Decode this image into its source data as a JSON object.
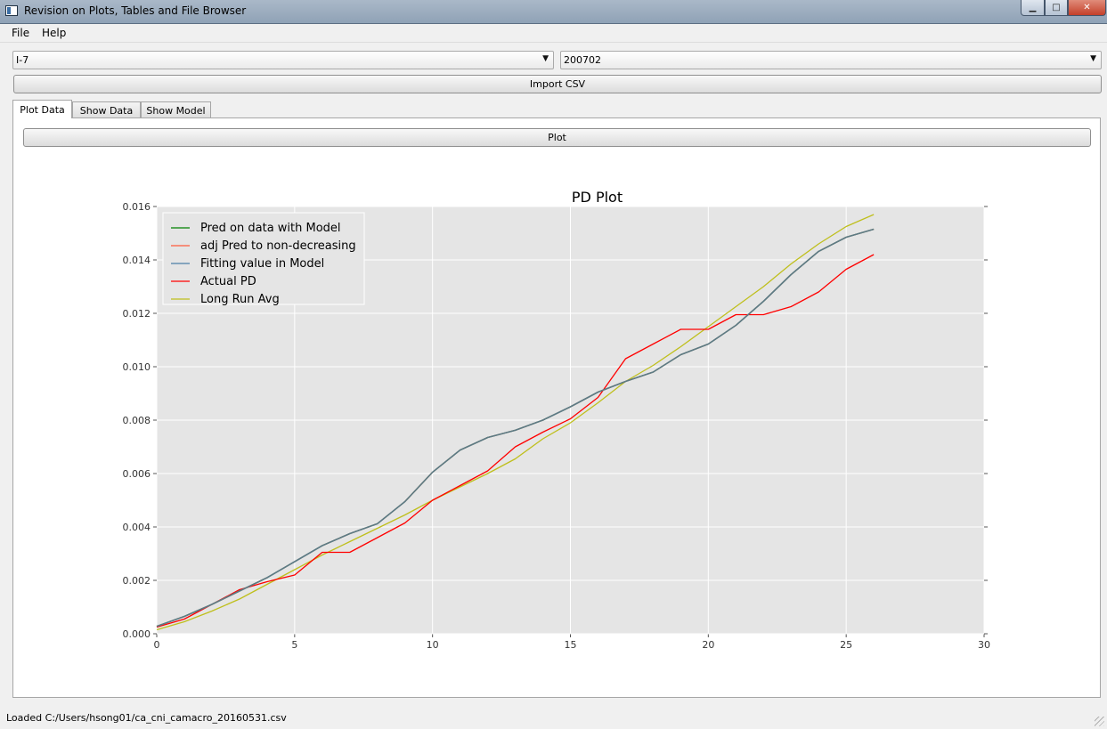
{
  "window": {
    "title": "Revision on Plots, Tables and File Browser",
    "min_glyph": "▁",
    "max_glyph": "□",
    "close_glyph": "✕",
    "icon": "app-window-icon"
  },
  "menu": {
    "file": "File",
    "help": "Help"
  },
  "selectors": {
    "group": {
      "value": "I-7",
      "arrow": "▼"
    },
    "period": {
      "value": "200702",
      "arrow": "▼"
    }
  },
  "import_button": "Import CSV",
  "tabs": [
    {
      "label": "Plot Data",
      "active": true
    },
    {
      "label": "Show Data",
      "active": false
    },
    {
      "label": "Show Model",
      "active": false
    }
  ],
  "plot_button": "Plot",
  "status": "Loaded C:/Users/hsong01/ca_cni_camacro_20160531.csv",
  "colors": {
    "plot_bg": "#e5e5e5",
    "grid": "#ffffff",
    "pred": "#008000",
    "adj_pred": "#ff5a3c",
    "fitting": "#4c7fa6",
    "fitting_overlay": "#5c7b86",
    "actual": "#ff0000",
    "long_run": "#bfbf1c"
  },
  "chart_data": {
    "type": "line",
    "title": "PD Plot",
    "xlabel": "",
    "ylabel": "",
    "xlim": [
      0,
      30
    ],
    "ylim": [
      0,
      0.016
    ],
    "grid": true,
    "legend_position": "upper-left",
    "x_ticks": [
      "0",
      "5",
      "10",
      "15",
      "20",
      "25",
      "30"
    ],
    "y_ticks": [
      "0.000",
      "0.002",
      "0.004",
      "0.006",
      "0.008",
      "0.010",
      "0.012",
      "0.014",
      "0.016"
    ],
    "x": [
      0,
      1,
      2,
      3,
      4,
      5,
      6,
      7,
      8,
      9,
      10,
      11,
      12,
      13,
      14,
      15,
      16,
      17,
      18,
      19,
      20,
      21,
      22,
      23,
      24,
      25,
      26
    ],
    "series": [
      {
        "name": "Pred on data with Model",
        "color": "#008000",
        "values": [
          0.00028,
          0.00065,
          0.0011,
          0.0016,
          0.0021,
          0.0027,
          0.0033,
          0.00375,
          0.00412,
          0.00495,
          0.00605,
          0.00688,
          0.00735,
          0.00762,
          0.008,
          0.0085,
          0.00905,
          0.00945,
          0.0098,
          0.01045,
          0.01085,
          0.01155,
          0.01245,
          0.01345,
          0.01432,
          0.01485,
          0.01515
        ]
      },
      {
        "name": "adj Pred to non-decreasing",
        "color": "#ff5a3c",
        "values": [
          0.00028,
          0.00065,
          0.0011,
          0.0016,
          0.0021,
          0.0027,
          0.0033,
          0.00375,
          0.00412,
          0.00495,
          0.00605,
          0.00688,
          0.00735,
          0.00762,
          0.008,
          0.0085,
          0.00905,
          0.00945,
          0.0098,
          0.01045,
          0.01085,
          0.01155,
          0.01245,
          0.01345,
          0.01432,
          0.01485,
          0.01515
        ]
      },
      {
        "name": "Fitting value in Model",
        "color": "#4c7fa6",
        "values": [
          0.00028,
          0.00065,
          0.0011,
          0.0016,
          0.0021,
          0.0027,
          0.0033,
          0.00375,
          0.00412,
          0.00495,
          0.00605,
          0.00688,
          0.00735,
          0.00762,
          0.008,
          0.0085,
          0.00905,
          0.00945,
          0.0098,
          0.01045,
          0.01085,
          0.01155,
          0.01245,
          0.01345,
          0.01432,
          0.01485,
          0.01515
        ]
      },
      {
        "name": "Actual PD",
        "color": "#ff0000",
        "values": [
          0.00025,
          0.00055,
          0.0011,
          0.00165,
          0.00195,
          0.0022,
          0.00305,
          0.00305,
          0.0036,
          0.00415,
          0.005,
          0.00555,
          0.0061,
          0.007,
          0.00755,
          0.00805,
          0.00885,
          0.0103,
          0.01085,
          0.0114,
          0.0114,
          0.01195,
          0.01195,
          0.01225,
          0.0128,
          0.01365,
          0.0142
        ]
      },
      {
        "name": "Long Run Avg",
        "color": "#bfbf1c",
        "values": [
          0.00015,
          0.00045,
          0.00085,
          0.0013,
          0.00185,
          0.0024,
          0.00295,
          0.00345,
          0.00395,
          0.00445,
          0.005,
          0.0055,
          0.006,
          0.00655,
          0.0073,
          0.0079,
          0.00865,
          0.00945,
          0.01005,
          0.01075,
          0.0115,
          0.01225,
          0.013,
          0.01385,
          0.0146,
          0.01525,
          0.0157
        ]
      }
    ]
  }
}
